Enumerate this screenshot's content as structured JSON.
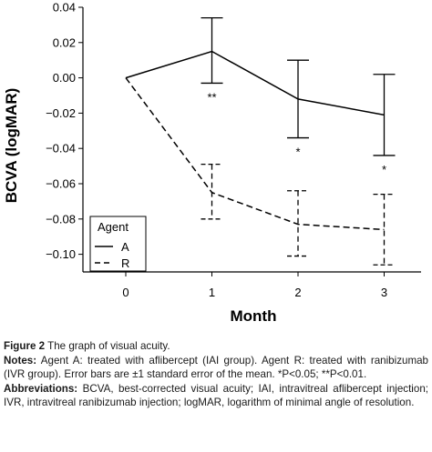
{
  "chart_data": {
    "type": "line",
    "ylabel": "BCVA (logMAR)",
    "xlabel": "Month",
    "x": [
      0,
      1,
      2,
      3
    ],
    "xticks": [
      "0",
      "1",
      "2",
      "3"
    ],
    "ylim": [
      -0.11,
      0.04
    ],
    "yticks": [
      0.04,
      0.02,
      0.0,
      -0.02,
      -0.04,
      -0.06,
      -0.08,
      -0.1
    ],
    "ytick_labels": [
      "0.04",
      "0.02",
      "0.00",
      "−0.02",
      "−0.04",
      "−0.06",
      "−0.08",
      "−0.10"
    ],
    "legend": {
      "title": "Agent",
      "position": "lower-left"
    },
    "series": [
      {
        "name": "A",
        "line_style": "solid",
        "values": [
          0.0,
          0.015,
          -0.012,
          -0.021
        ],
        "error": [
          null,
          [
            -0.003,
            0.034
          ],
          [
            -0.034,
            0.01
          ],
          [
            -0.044,
            0.002
          ]
        ],
        "annotations": [
          "",
          "**",
          "*",
          "*"
        ]
      },
      {
        "name": "R",
        "line_style": "dashed",
        "values": [
          0.0,
          -0.065,
          -0.083,
          -0.086
        ],
        "error": [
          null,
          [
            -0.08,
            -0.049
          ],
          [
            -0.101,
            -0.064
          ],
          [
            -0.106,
            -0.066
          ]
        ],
        "annotations": [
          "",
          "",
          "",
          ""
        ]
      }
    ]
  },
  "caption": {
    "figure_label": "Figure 2",
    "figure_title": " The graph of visual acuity.",
    "notes_label": "Notes:",
    "notes_text": " Agent A: treated with aflibercept (IAI group). Agent R: treated with ranibizumab (IVR group). Error bars are ±1 standard error of the mean. *P<0.05; **P<0.01.",
    "abbrev_label": "Abbreviations:",
    "abbrev_text": " BCVA, best-corrected visual acuity; IAI, intravitreal aflibercept injection; IVR, intravitreal ranibizumab injection; logMAR, logarithm of minimal angle of resolution."
  }
}
